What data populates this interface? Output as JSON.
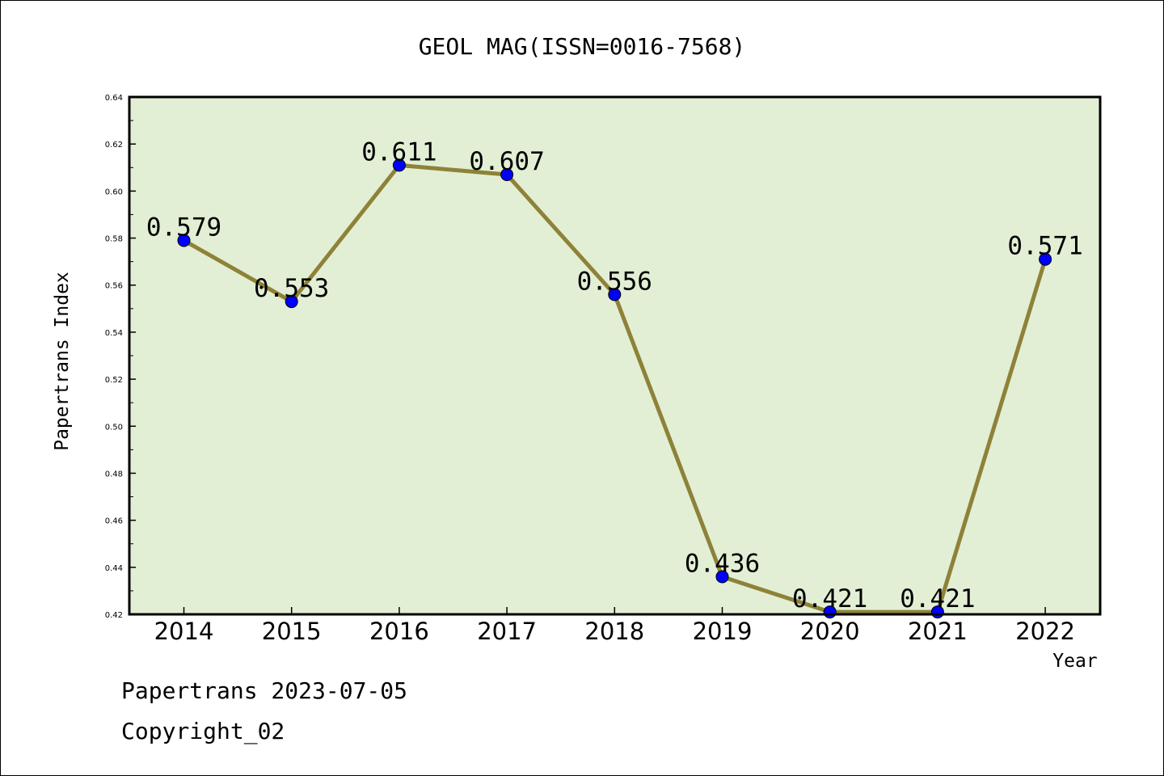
{
  "chart_data": {
    "type": "line",
    "title": "GEOL MAG(ISSN=0016-7568)",
    "xlabel": "Year",
    "ylabel": "Papertrans Index",
    "categories": [
      "2014",
      "2015",
      "2016",
      "2017",
      "2018",
      "2019",
      "2020",
      "2021",
      "2022"
    ],
    "values": [
      0.579,
      0.553,
      0.611,
      0.607,
      0.556,
      0.436,
      0.421,
      0.421,
      0.571
    ],
    "value_labels": [
      "0.579",
      "0.553",
      "0.611",
      "0.607",
      "0.556",
      "0.436",
      "0.421",
      "0.421",
      "0.571"
    ],
    "ylim": [
      0.42,
      0.64
    ],
    "yticks": [
      "0.42",
      "0.44",
      "0.46",
      "0.48",
      "0.50",
      "0.52",
      "0.54",
      "0.56",
      "0.58",
      "0.60",
      "0.62",
      "0.64"
    ],
    "grid": false,
    "colors": {
      "plot_bg": "#e2efd5",
      "line": "#8e8238",
      "marker": "#0000ff"
    }
  },
  "footer": {
    "line1": "Papertrans 2023-07-05",
    "line2": "Copyright_02"
  }
}
